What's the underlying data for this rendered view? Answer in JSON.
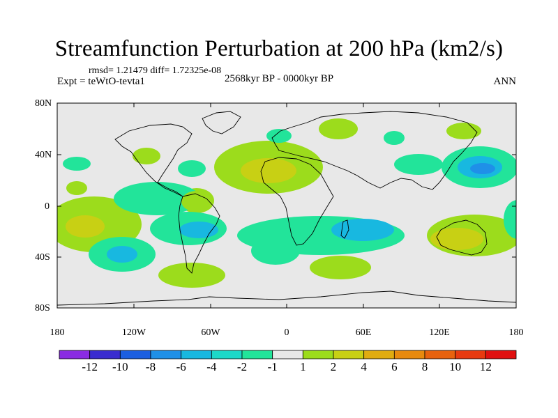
{
  "title": "Streamfunction Perturbation at 200 hPa (km2/s)",
  "stats": "rmsd= 1.21479 diff= 1.72325e-08",
  "experiment": "Expt = teWtO-tevta1",
  "period": "2568kyr BP - 0000kyr BP",
  "season": "ANN",
  "lat_labels": [
    "80N",
    "40N",
    "0",
    "40S",
    "80S"
  ],
  "lon_labels": [
    "180",
    "120W",
    "60W",
    "0",
    "60E",
    "120E",
    "180"
  ],
  "colorbar": {
    "labels": [
      "-12",
      "-10",
      "-8",
      "-6",
      "-4",
      "-2",
      "-1",
      "1",
      "2",
      "4",
      "6",
      "8",
      "10",
      "12"
    ],
    "colors": [
      "#8a2be2",
      "#3a2ccf",
      "#1c5fe0",
      "#1f90e8",
      "#18b8e0",
      "#1cd8c8",
      "#22e49a",
      "#e8e8e8",
      "#9cdc1c",
      "#c8d014",
      "#e0ac10",
      "#e88a0e",
      "#e8620e",
      "#e83a10",
      "#e01010"
    ]
  },
  "colors": {
    "neutral": "#e8e8e8",
    "light_pos": "#9cdc1c",
    "pos4": "#c8d014",
    "light_neg": "#22e49a",
    "neg4": "#18b8e0",
    "neg6": "#1f90e8"
  }
}
